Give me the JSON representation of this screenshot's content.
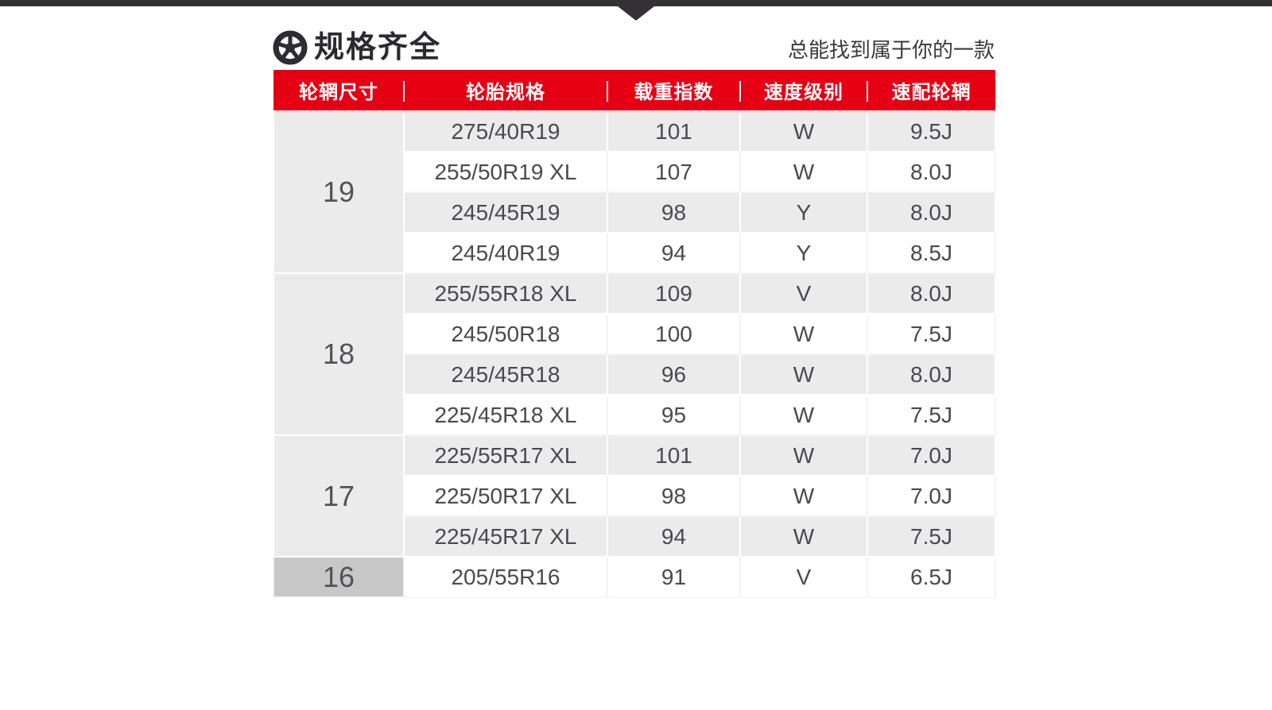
{
  "colors": {
    "accent_red": "#e60014",
    "top_bar": "#333036",
    "rim_column_bg": "#c7c7c7",
    "alt_row_bg": "#ebebeb",
    "header_text": "#ffffff",
    "cell_text": "#4a4950"
  },
  "header": {
    "icon": "wheel-icon",
    "title": "规格齐全",
    "subtitle": "总能找到属于你的一款"
  },
  "table": {
    "columns": [
      "轮辋尺寸",
      "轮胎规格",
      "载重指数",
      "速度级别",
      "速配轮辋"
    ],
    "groups": [
      {
        "rim_size": "19",
        "rows": [
          [
            "275/40R19",
            "101",
            "W",
            "9.5J"
          ],
          [
            "255/50R19 XL",
            "107",
            "W",
            "8.0J"
          ],
          [
            "245/45R19",
            "98",
            "Y",
            "8.0J"
          ],
          [
            "245/40R19",
            "94",
            "Y",
            "8.5J"
          ]
        ]
      },
      {
        "rim_size": "18",
        "rows": [
          [
            "255/55R18 XL",
            "109",
            "V",
            "8.0J"
          ],
          [
            "245/50R18",
            "100",
            "W",
            "7.5J"
          ],
          [
            "245/45R18",
            "96",
            "W",
            "8.0J"
          ],
          [
            "225/45R18 XL",
            "95",
            "W",
            "7.5J"
          ]
        ]
      },
      {
        "rim_size": "17",
        "rows": [
          [
            "225/55R17 XL",
            "101",
            "W",
            "7.0J"
          ],
          [
            "225/50R17 XL",
            "98",
            "W",
            "7.0J"
          ],
          [
            "225/45R17 XL",
            "94",
            "W",
            "7.5J"
          ]
        ]
      },
      {
        "rim_size": "16",
        "rows": [
          [
            "205/55R16",
            "91",
            "V",
            "6.5J"
          ]
        ]
      }
    ]
  },
  "chart_data": {
    "type": "table",
    "title": "规格齐全",
    "subtitle": "总能找到属于你的一款",
    "columns": [
      "轮辋尺寸",
      "轮胎规格",
      "载重指数",
      "速度级别",
      "速配轮辋"
    ],
    "rows": [
      [
        "19",
        "275/40R19",
        "101",
        "W",
        "9.5J"
      ],
      [
        "19",
        "255/50R19 XL",
        "107",
        "W",
        "8.0J"
      ],
      [
        "19",
        "245/45R19",
        "98",
        "Y",
        "8.0J"
      ],
      [
        "19",
        "245/40R19",
        "94",
        "Y",
        "8.5J"
      ],
      [
        "18",
        "255/55R18 XL",
        "109",
        "V",
        "8.0J"
      ],
      [
        "18",
        "245/50R18",
        "100",
        "W",
        "7.5J"
      ],
      [
        "18",
        "245/45R18",
        "96",
        "W",
        "8.0J"
      ],
      [
        "18",
        "225/45R18 XL",
        "95",
        "W",
        "7.5J"
      ],
      [
        "17",
        "225/55R17 XL",
        "101",
        "W",
        "7.0J"
      ],
      [
        "17",
        "225/50R17 XL",
        "98",
        "W",
        "7.0J"
      ],
      [
        "17",
        "225/45R17 XL",
        "94",
        "W",
        "7.5J"
      ],
      [
        "16",
        "205/55R16",
        "91",
        "V",
        "6.5J"
      ]
    ],
    "layout_hints": {
      "header_bg": "#e60014",
      "rim_column_merged": true,
      "zebra_rows": true
    }
  }
}
